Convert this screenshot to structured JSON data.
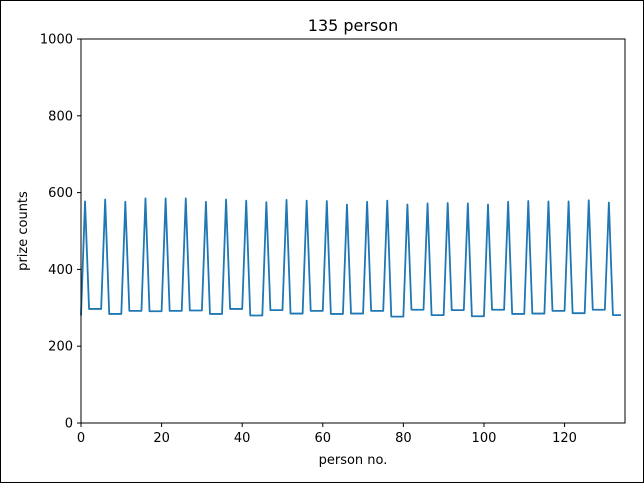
{
  "chart_data": {
    "type": "line",
    "title": "135 person",
    "xlabel": "person no.",
    "ylabel": "prize counts",
    "xlim": [
      0,
      135
    ],
    "ylim": [
      0,
      1000
    ],
    "xticks": [
      0,
      20,
      40,
      60,
      80,
      100,
      120
    ],
    "yticks": [
      0,
      200,
      400,
      600,
      800,
      1000
    ],
    "grid": false,
    "series": [
      {
        "color": "#1f77b4",
        "x": [
          0,
          1,
          2,
          3,
          4,
          5,
          6,
          7,
          8,
          9,
          10,
          11,
          12,
          13,
          14,
          15,
          16,
          17,
          18,
          19,
          20,
          21,
          22,
          23,
          24,
          25,
          26,
          27,
          28,
          29,
          30,
          31,
          32,
          33,
          34,
          35,
          36,
          37,
          38,
          39,
          40,
          41,
          42,
          43,
          44,
          45,
          46,
          47,
          48,
          49,
          50,
          51,
          52,
          53,
          54,
          55,
          56,
          57,
          58,
          59,
          60,
          61,
          62,
          63,
          64,
          65,
          66,
          67,
          68,
          69,
          70,
          71,
          72,
          73,
          74,
          75,
          76,
          77,
          78,
          79,
          80,
          81,
          82,
          83,
          84,
          85,
          86,
          87,
          88,
          89,
          90,
          91,
          92,
          93,
          94,
          95,
          96,
          97,
          98,
          99,
          100,
          101,
          102,
          103,
          104,
          105,
          106,
          107,
          108,
          109,
          110,
          111,
          112,
          113,
          114,
          115,
          116,
          117,
          118,
          119,
          120,
          121,
          122,
          123,
          124,
          125,
          126,
          127,
          128,
          129,
          130,
          131,
          132,
          133,
          134
        ],
        "values": [
          280,
          577,
          297,
          297,
          297,
          297,
          582,
          284,
          284,
          284,
          284,
          576,
          292,
          292,
          292,
          292,
          585,
          291,
          291,
          291,
          291,
          585,
          292,
          292,
          292,
          292,
          585,
          293,
          293,
          293,
          293,
          576,
          284,
          284,
          284,
          284,
          582,
          297,
          297,
          297,
          297,
          579,
          280,
          280,
          280,
          280,
          575,
          294,
          294,
          294,
          294,
          581,
          285,
          285,
          285,
          285,
          579,
          292,
          292,
          292,
          292,
          578,
          284,
          284,
          284,
          284,
          569,
          285,
          285,
          285,
          285,
          576,
          292,
          292,
          292,
          292,
          579,
          277,
          277,
          277,
          277,
          569,
          295,
          295,
          295,
          295,
          572,
          281,
          281,
          281,
          281,
          573,
          294,
          294,
          294,
          294,
          572,
          278,
          278,
          278,
          278,
          569,
          295,
          295,
          295,
          295,
          576,
          284,
          284,
          284,
          284,
          578,
          285,
          285,
          285,
          285,
          577,
          292,
          292,
          292,
          292,
          577,
          286,
          286,
          286,
          286,
          580,
          295,
          295,
          295,
          295,
          574,
          281,
          281,
          281
        ]
      }
    ]
  }
}
